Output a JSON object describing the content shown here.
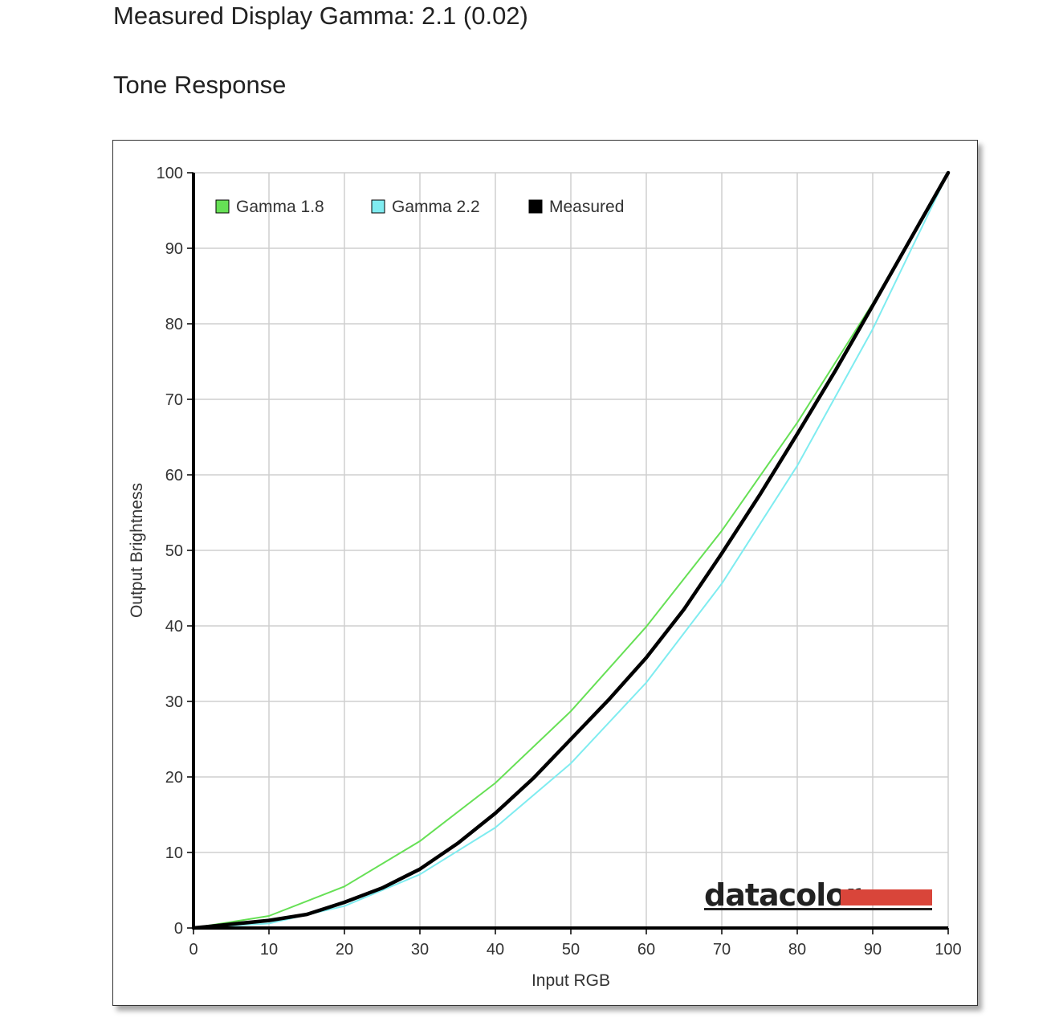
{
  "header": {
    "gamma_text": "Measured Display Gamma: 2.1 (0.02)",
    "section_title": "Tone Response"
  },
  "logo": {
    "text": "datacolor",
    "bar_color": "#d9453a"
  },
  "chart_data": {
    "type": "line",
    "title": "",
    "xlabel": "Input RGB",
    "ylabel": "Output Brightness",
    "xlim": [
      0,
      100
    ],
    "ylim": [
      0,
      100
    ],
    "xticks": [
      0,
      10,
      20,
      30,
      40,
      50,
      60,
      70,
      80,
      90,
      100
    ],
    "yticks": [
      0,
      10,
      20,
      30,
      40,
      50,
      60,
      70,
      80,
      90,
      100
    ],
    "grid": true,
    "legend_position": "top-left",
    "series": [
      {
        "name": "Gamma 1.8",
        "color": "#66e055",
        "gamma": 1.8,
        "x": [
          0,
          10,
          20,
          30,
          40,
          50,
          60,
          70,
          80,
          90,
          100
        ],
        "y": [
          0,
          1.6,
          5.5,
          11.5,
          19.2,
          28.7,
          39.9,
          52.6,
          66.9,
          82.7,
          100
        ]
      },
      {
        "name": "Gamma 2.2",
        "color": "#7fecf0",
        "gamma": 2.2,
        "x": [
          0,
          10,
          20,
          30,
          40,
          50,
          60,
          70,
          80,
          90,
          100
        ],
        "y": [
          0,
          0.6,
          2.9,
          7.1,
          13.3,
          21.8,
          32.5,
          45.6,
          61.2,
          79.3,
          100
        ]
      },
      {
        "name": "Measured",
        "color": "#000000",
        "x": [
          0,
          5,
          10,
          15,
          20,
          25,
          30,
          35,
          40,
          45,
          50,
          55,
          60,
          65,
          70,
          75,
          80,
          85,
          90,
          95,
          100
        ],
        "y": [
          0,
          0.5,
          1.0,
          1.8,
          3.4,
          5.3,
          7.8,
          11.2,
          15.2,
          19.8,
          25.0,
          30.2,
          35.8,
          42.2,
          49.6,
          57.3,
          65.4,
          73.7,
          82.4,
          91.2,
          100
        ]
      }
    ]
  }
}
